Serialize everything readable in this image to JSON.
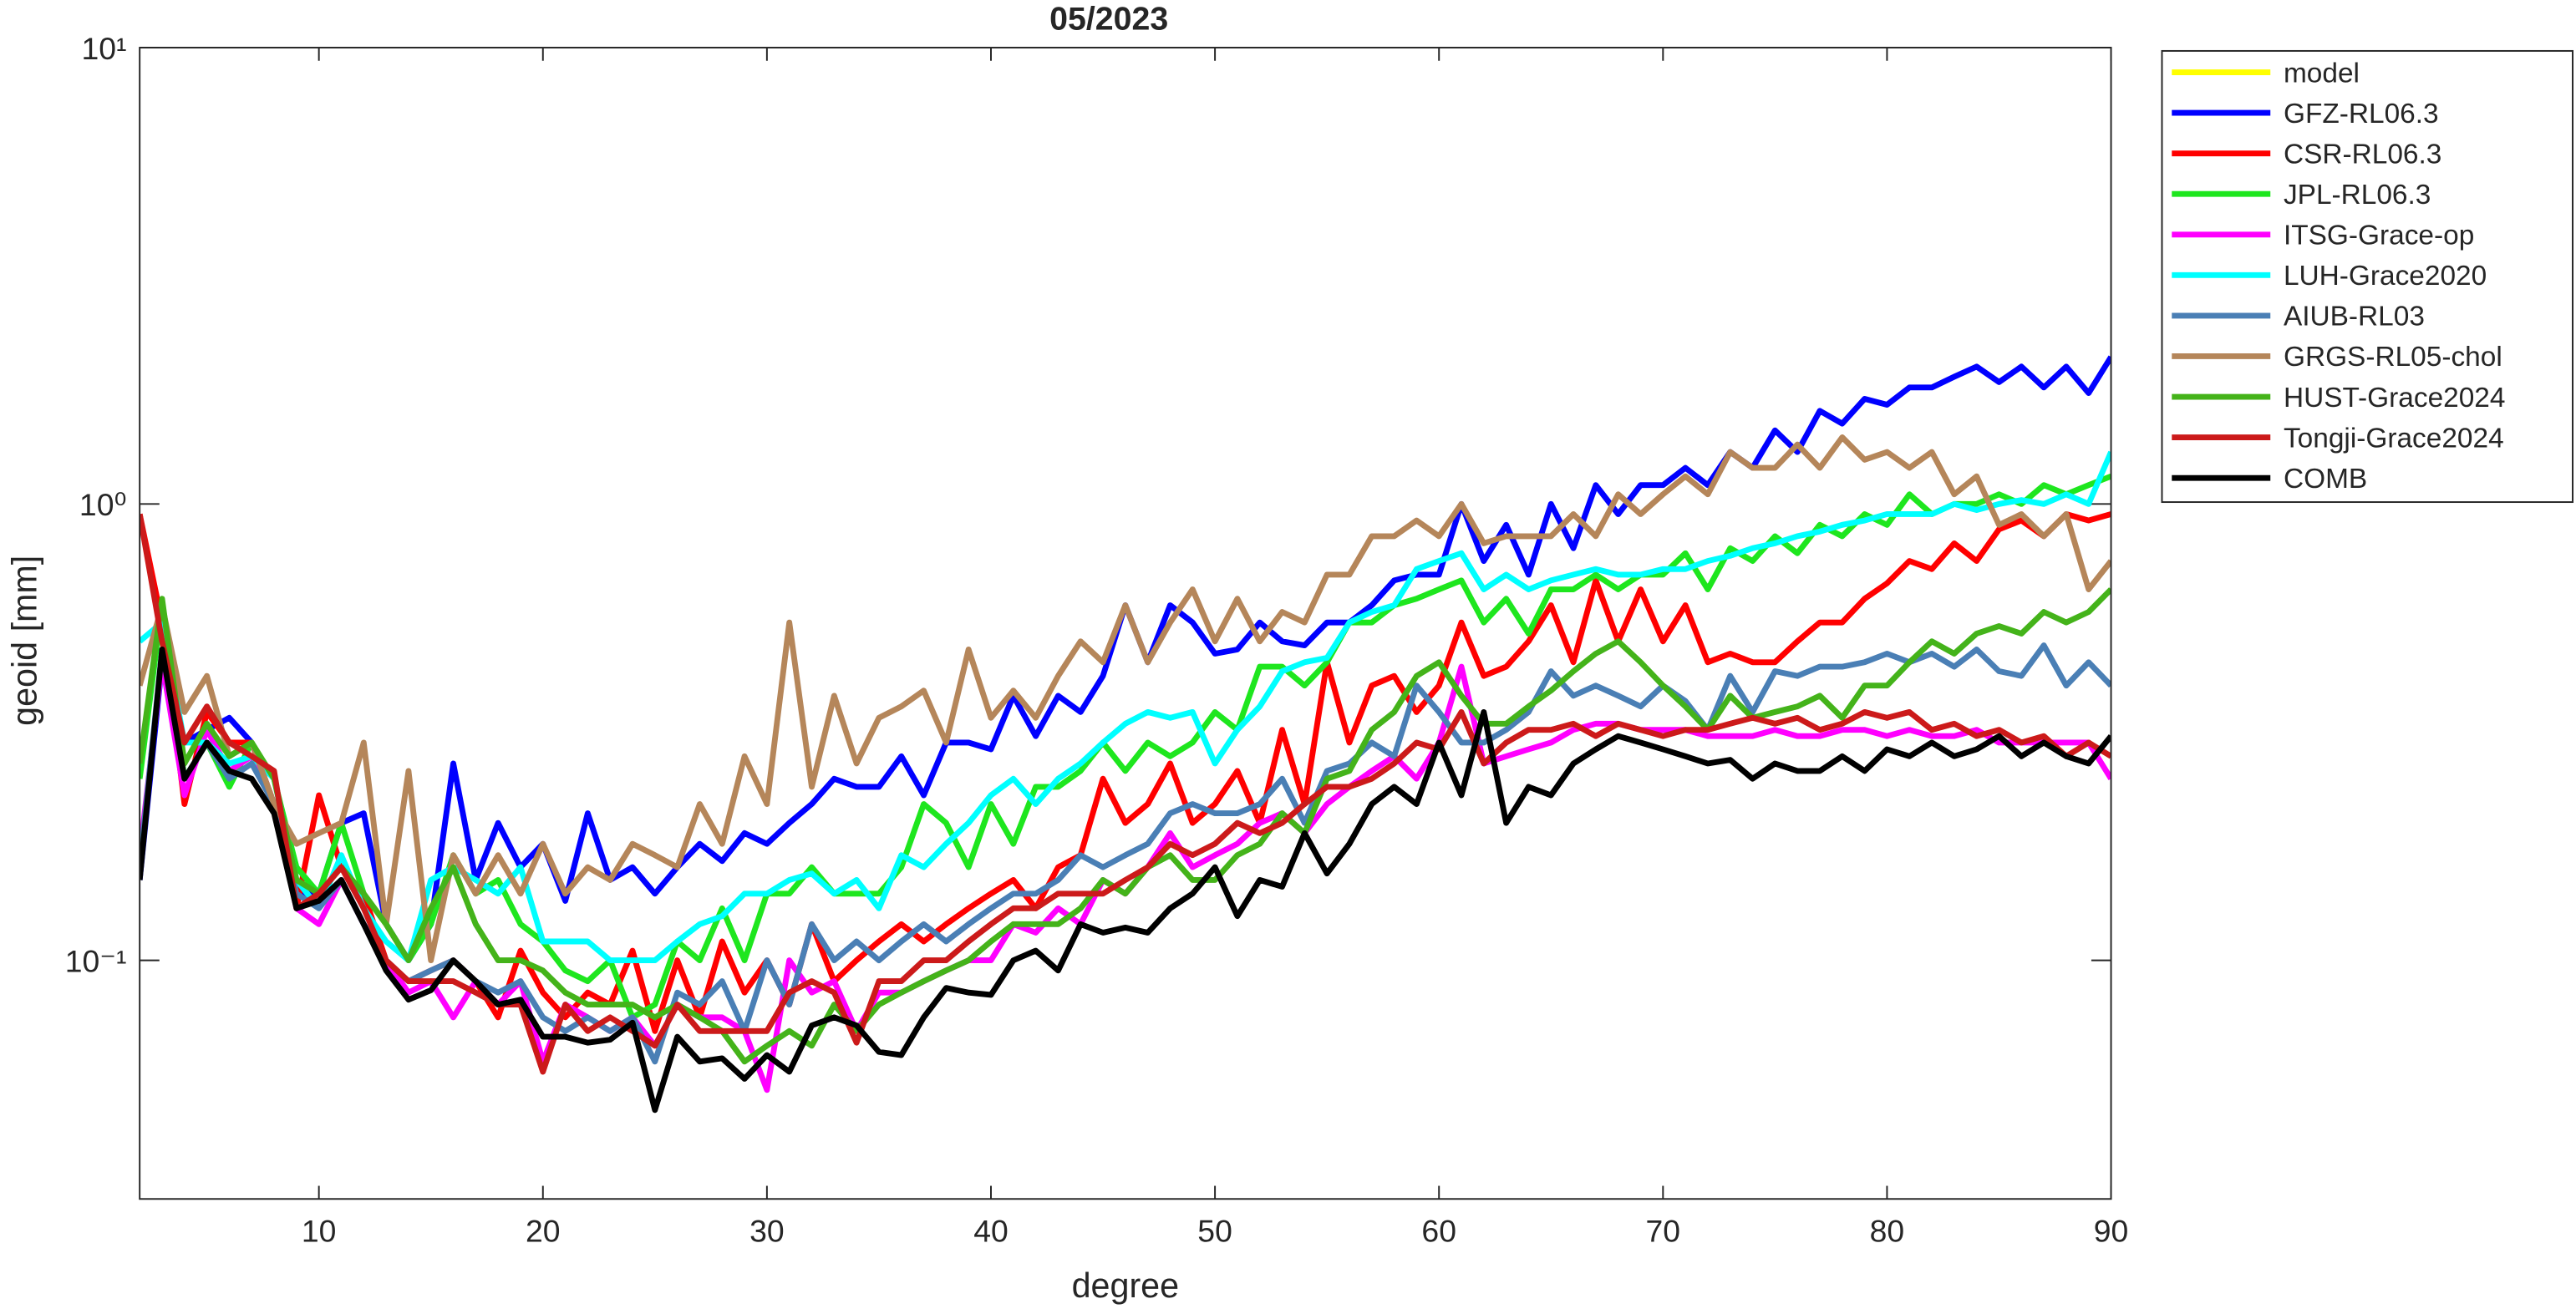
{
  "chart_data": {
    "type": "line",
    "title": "05/2023",
    "xlabel": "degree",
    "ylabel": "geoid [mm]",
    "xlim": [
      2,
      90
    ],
    "ylim": [
      0.03,
      10
    ],
    "log_y": true,
    "xticks": [
      10,
      20,
      30,
      40,
      50,
      60,
      70,
      80,
      90
    ],
    "yticks": [
      {
        "value": 0.1,
        "label": "10⁻¹"
      },
      {
        "value": 1,
        "label": "10⁰"
      },
      {
        "value": 10,
        "label": "10¹"
      }
    ],
    "legend": "northeastoutside",
    "x": [
      2,
      3,
      4,
      5,
      6,
      7,
      8,
      9,
      10,
      11,
      12,
      13,
      14,
      15,
      16,
      17,
      18,
      19,
      20,
      21,
      22,
      23,
      24,
      25,
      26,
      27,
      28,
      29,
      30,
      31,
      32,
      33,
      34,
      35,
      36,
      37,
      38,
      39,
      40,
      41,
      42,
      43,
      44,
      45,
      46,
      47,
      48,
      49,
      50,
      51,
      52,
      53,
      54,
      55,
      56,
      57,
      58,
      59,
      60,
      61,
      62,
      63,
      64,
      65,
      66,
      67,
      68,
      69,
      70,
      71,
      72,
      73,
      74,
      75,
      76,
      77,
      78,
      79,
      80,
      81,
      82,
      83,
      84,
      85,
      86,
      87,
      88,
      89,
      90
    ],
    "series": [
      {
        "name": "model",
        "color": "#ffff00",
        "values": [
          null,
          null,
          null,
          null,
          null,
          null,
          null,
          null,
          null,
          null,
          null,
          null,
          null,
          null,
          null,
          null,
          null,
          null,
          null,
          null,
          null,
          null,
          null,
          null,
          null,
          null,
          null,
          null,
          null,
          null,
          null,
          null,
          null,
          null,
          null,
          null,
          null,
          null,
          null,
          null,
          null,
          null,
          null,
          null,
          null,
          null,
          null,
          null,
          null,
          null,
          null,
          null,
          null,
          null,
          null,
          null,
          null,
          null,
          null,
          null,
          null,
          null,
          null,
          null,
          null,
          null,
          null,
          null,
          null,
          null,
          null,
          null,
          null,
          null,
          null,
          null,
          null,
          null,
          null,
          null,
          null,
          null,
          null,
          null,
          null,
          null,
          null,
          null,
          null
        ]
      },
      {
        "name": "GFZ-RL06.3",
        "color": "#0000ff",
        "values": [
          0.15,
          0.45,
          0.3,
          0.32,
          0.34,
          0.3,
          0.22,
          0.14,
          0.14,
          0.2,
          0.21,
          0.12,
          0.1,
          0.12,
          0.27,
          0.15,
          0.2,
          0.16,
          0.18,
          0.135,
          0.21,
          0.15,
          0.16,
          0.14,
          0.16,
          0.18,
          0.165,
          0.19,
          0.18,
          0.2,
          0.22,
          0.25,
          0.24,
          0.24,
          0.28,
          0.23,
          0.3,
          0.3,
          0.29,
          0.38,
          0.31,
          0.38,
          0.35,
          0.42,
          0.6,
          0.45,
          0.6,
          0.55,
          0.47,
          0.48,
          0.55,
          0.5,
          0.49,
          0.55,
          0.55,
          0.6,
          0.68,
          0.7,
          0.7,
          1.0,
          0.75,
          0.9,
          0.7,
          1.0,
          0.8,
          1.1,
          0.95,
          1.1,
          1.1,
          1.2,
          1.1,
          1.3,
          1.2,
          1.45,
          1.3,
          1.6,
          1.5,
          1.7,
          1.65,
          1.8,
          1.8,
          1.9,
          2.0,
          1.85,
          2.0,
          1.8,
          2.0,
          1.75,
          2.1
        ]
      },
      {
        "name": "CSR-RL06.3",
        "color": "#ff0000",
        "values": [
          0.95,
          0.55,
          0.22,
          0.35,
          0.3,
          0.3,
          0.22,
          0.13,
          0.23,
          0.16,
          0.14,
          0.1,
          0.09,
          0.095,
          0.1,
          0.09,
          0.075,
          0.105,
          0.085,
          0.075,
          0.085,
          0.08,
          0.105,
          0.07,
          0.1,
          0.075,
          0.11,
          0.085,
          0.1,
          0.08,
          0.12,
          0.09,
          0.1,
          0.11,
          0.12,
          0.11,
          0.12,
          0.13,
          0.14,
          0.15,
          0.13,
          0.16,
          0.17,
          0.25,
          0.2,
          0.22,
          0.27,
          0.2,
          0.22,
          0.26,
          0.2,
          0.32,
          0.22,
          0.45,
          0.3,
          0.4,
          0.42,
          0.35,
          0.4,
          0.55,
          0.42,
          0.44,
          0.5,
          0.6,
          0.45,
          0.68,
          0.5,
          0.65,
          0.5,
          0.6,
          0.45,
          0.47,
          0.45,
          0.45,
          0.5,
          0.55,
          0.55,
          0.62,
          0.67,
          0.75,
          0.72,
          0.82,
          0.75,
          0.88,
          0.92,
          0.85,
          0.95,
          0.92,
          0.95
        ]
      },
      {
        "name": "JPL-RL06.3",
        "color": "#1ee61e",
        "values": [
          0.25,
          0.6,
          0.25,
          0.3,
          0.24,
          0.3,
          0.25,
          0.16,
          0.14,
          0.2,
          0.14,
          0.12,
          0.1,
          0.12,
          0.17,
          0.14,
          0.15,
          0.12,
          0.11,
          0.095,
          0.09,
          0.1,
          0.075,
          0.08,
          0.11,
          0.1,
          0.13,
          0.1,
          0.14,
          0.14,
          0.16,
          0.14,
          0.14,
          0.14,
          0.16,
          0.22,
          0.2,
          0.16,
          0.22,
          0.18,
          0.24,
          0.24,
          0.26,
          0.3,
          0.26,
          0.3,
          0.28,
          0.3,
          0.35,
          0.32,
          0.44,
          0.44,
          0.4,
          0.45,
          0.55,
          0.55,
          0.6,
          0.62,
          0.65,
          0.68,
          0.55,
          0.62,
          0.52,
          0.65,
          0.65,
          0.7,
          0.65,
          0.7,
          0.7,
          0.78,
          0.65,
          0.8,
          0.75,
          0.85,
          0.78,
          0.9,
          0.85,
          0.95,
          0.9,
          1.05,
          0.95,
          1.0,
          1.0,
          1.05,
          1.0,
          1.1,
          1.05,
          1.1,
          1.15
        ]
      },
      {
        "name": "ITSG-Grace-op",
        "color": "#ff00ff",
        "values": [
          0.17,
          0.45,
          0.23,
          0.32,
          0.26,
          0.28,
          0.22,
          0.13,
          0.12,
          0.15,
          0.12,
          0.1,
          0.085,
          0.09,
          0.075,
          0.09,
          0.08,
          0.09,
          0.06,
          0.08,
          0.075,
          0.07,
          0.075,
          0.065,
          0.08,
          0.075,
          0.075,
          0.07,
          0.052,
          0.1,
          0.085,
          0.09,
          0.07,
          0.085,
          0.085,
          0.09,
          0.095,
          0.1,
          0.1,
          0.12,
          0.115,
          0.13,
          0.12,
          0.15,
          0.14,
          0.16,
          0.19,
          0.16,
          0.17,
          0.18,
          0.2,
          0.21,
          0.19,
          0.22,
          0.24,
          0.26,
          0.28,
          0.25,
          0.3,
          0.44,
          0.27,
          0.28,
          0.29,
          0.3,
          0.32,
          0.33,
          0.33,
          0.32,
          0.32,
          0.32,
          0.31,
          0.31,
          0.31,
          0.32,
          0.31,
          0.31,
          0.32,
          0.32,
          0.31,
          0.32,
          0.31,
          0.31,
          0.32,
          0.3,
          0.3,
          0.3,
          0.3,
          0.3,
          0.25
        ]
      },
      {
        "name": "LUH-Grace2020",
        "color": "#00ffff",
        "values": [
          0.5,
          0.55,
          0.3,
          0.3,
          0.27,
          0.28,
          0.25,
          0.15,
          0.13,
          0.17,
          0.13,
          0.11,
          0.1,
          0.15,
          0.16,
          0.15,
          0.14,
          0.16,
          0.11,
          0.11,
          0.11,
          0.1,
          0.1,
          0.1,
          0.11,
          0.12,
          0.125,
          0.14,
          0.14,
          0.15,
          0.155,
          0.14,
          0.15,
          0.13,
          0.17,
          0.16,
          0.18,
          0.2,
          0.23,
          0.25,
          0.22,
          0.25,
          0.27,
          0.3,
          0.33,
          0.35,
          0.34,
          0.35,
          0.27,
          0.32,
          0.36,
          0.43,
          0.45,
          0.46,
          0.55,
          0.58,
          0.6,
          0.72,
          0.75,
          0.78,
          0.65,
          0.7,
          0.65,
          0.68,
          0.7,
          0.72,
          0.7,
          0.7,
          0.72,
          0.72,
          0.75,
          0.77,
          0.8,
          0.82,
          0.85,
          0.87,
          0.9,
          0.92,
          0.95,
          0.95,
          0.95,
          1.0,
          0.97,
          1.0,
          1.02,
          1.0,
          1.05,
          1.0,
          1.3
        ]
      },
      {
        "name": "AIUB-RL03",
        "color": "#4a7fb5",
        "values": [
          0.16,
          0.48,
          0.25,
          0.3,
          0.25,
          0.27,
          0.22,
          0.14,
          0.13,
          0.15,
          0.12,
          0.1,
          0.09,
          0.095,
          0.1,
          0.09,
          0.085,
          0.09,
          0.075,
          0.07,
          0.075,
          0.07,
          0.075,
          0.06,
          0.085,
          0.08,
          0.09,
          0.07,
          0.1,
          0.08,
          0.12,
          0.1,
          0.11,
          0.1,
          0.11,
          0.12,
          0.11,
          0.12,
          0.13,
          0.14,
          0.14,
          0.15,
          0.17,
          0.16,
          0.17,
          0.18,
          0.21,
          0.22,
          0.21,
          0.21,
          0.22,
          0.25,
          0.2,
          0.26,
          0.27,
          0.3,
          0.28,
          0.4,
          0.35,
          0.3,
          0.3,
          0.32,
          0.35,
          0.43,
          0.38,
          0.4,
          0.38,
          0.36,
          0.4,
          0.37,
          0.32,
          0.42,
          0.35,
          0.43,
          0.42,
          0.44,
          0.44,
          0.45,
          0.47,
          0.45,
          0.47,
          0.44,
          0.48,
          0.43,
          0.42,
          0.49,
          0.4,
          0.45,
          0.4
        ]
      },
      {
        "name": "GRGS-RL05-chol",
        "color": "#b5865a",
        "values": [
          0.4,
          0.6,
          0.35,
          0.42,
          0.28,
          0.3,
          0.22,
          0.18,
          0.19,
          0.2,
          0.3,
          0.12,
          0.26,
          0.1,
          0.17,
          0.14,
          0.17,
          0.14,
          0.18,
          0.14,
          0.16,
          0.15,
          0.18,
          0.17,
          0.16,
          0.22,
          0.18,
          0.28,
          0.22,
          0.55,
          0.24,
          0.38,
          0.27,
          0.34,
          0.36,
          0.39,
          0.3,
          0.48,
          0.34,
          0.39,
          0.34,
          0.42,
          0.5,
          0.45,
          0.6,
          0.45,
          0.55,
          0.65,
          0.5,
          0.62,
          0.5,
          0.58,
          0.55,
          0.7,
          0.7,
          0.85,
          0.85,
          0.92,
          0.85,
          1.0,
          0.82,
          0.85,
          0.85,
          0.85,
          0.95,
          0.85,
          1.05,
          0.95,
          1.05,
          1.15,
          1.05,
          1.3,
          1.2,
          1.2,
          1.35,
          1.2,
          1.4,
          1.25,
          1.3,
          1.2,
          1.3,
          1.05,
          1.15,
          0.9,
          0.95,
          0.85,
          0.95,
          0.65,
          0.75
        ]
      },
      {
        "name": "HUST-Grace2024",
        "color": "#44b31a",
        "values": [
          0.27,
          0.62,
          0.27,
          0.33,
          0.28,
          0.3,
          0.25,
          0.15,
          0.14,
          0.16,
          0.14,
          0.12,
          0.1,
          0.13,
          0.16,
          0.12,
          0.1,
          0.1,
          0.095,
          0.085,
          0.08,
          0.08,
          0.08,
          0.075,
          0.08,
          0.075,
          0.07,
          0.06,
          0.065,
          0.07,
          0.065,
          0.08,
          0.07,
          0.08,
          0.085,
          0.09,
          0.095,
          0.1,
          0.11,
          0.12,
          0.12,
          0.12,
          0.13,
          0.15,
          0.14,
          0.16,
          0.17,
          0.15,
          0.15,
          0.17,
          0.18,
          0.21,
          0.19,
          0.25,
          0.26,
          0.32,
          0.35,
          0.42,
          0.45,
          0.38,
          0.33,
          0.33,
          0.36,
          0.39,
          0.43,
          0.47,
          0.5,
          0.45,
          0.4,
          0.36,
          0.32,
          0.38,
          0.34,
          0.35,
          0.36,
          0.38,
          0.34,
          0.4,
          0.4,
          0.45,
          0.5,
          0.47,
          0.52,
          0.54,
          0.52,
          0.58,
          0.55,
          0.58,
          0.65
        ]
      },
      {
        "name": "Tongji-Grace2024",
        "color": "#cc1a1a",
        "values": [
          0.95,
          0.5,
          0.3,
          0.36,
          0.3,
          0.28,
          0.26,
          0.13,
          0.14,
          0.16,
          0.13,
          0.1,
          0.09,
          0.09,
          0.09,
          0.085,
          0.08,
          0.08,
          0.057,
          0.08,
          0.07,
          0.075,
          0.07,
          0.065,
          0.08,
          0.07,
          0.07,
          0.07,
          0.07,
          0.085,
          0.09,
          0.085,
          0.066,
          0.09,
          0.09,
          0.1,
          0.1,
          0.11,
          0.12,
          0.13,
          0.13,
          0.14,
          0.14,
          0.14,
          0.15,
          0.16,
          0.18,
          0.17,
          0.18,
          0.2,
          0.19,
          0.2,
          0.22,
          0.24,
          0.24,
          0.25,
          0.27,
          0.3,
          0.29,
          0.35,
          0.27,
          0.3,
          0.32,
          0.32,
          0.33,
          0.31,
          0.33,
          0.32,
          0.31,
          0.32,
          0.32,
          0.33,
          0.34,
          0.33,
          0.34,
          0.32,
          0.33,
          0.35,
          0.34,
          0.35,
          0.32,
          0.33,
          0.31,
          0.32,
          0.3,
          0.31,
          0.28,
          0.3,
          0.28
        ]
      },
      {
        "name": "COMB",
        "color": "#000000",
        "values": [
          0.15,
          0.48,
          0.25,
          0.3,
          0.26,
          0.25,
          0.21,
          0.13,
          0.135,
          0.15,
          0.12,
          0.095,
          0.082,
          0.086,
          0.1,
          0.09,
          0.08,
          0.082,
          0.068,
          0.068,
          0.066,
          0.067,
          0.073,
          0.047,
          0.068,
          0.06,
          0.061,
          0.055,
          0.062,
          0.057,
          0.072,
          0.075,
          0.072,
          0.063,
          0.062,
          0.075,
          0.087,
          0.085,
          0.084,
          0.1,
          0.105,
          0.095,
          0.12,
          0.115,
          0.118,
          0.115,
          0.13,
          0.14,
          0.16,
          0.125,
          0.15,
          0.145,
          0.19,
          0.155,
          0.18,
          0.22,
          0.24,
          0.22,
          0.3,
          0.23,
          0.35,
          0.2,
          0.24,
          0.23,
          0.27,
          0.29,
          0.31,
          0.3,
          0.29,
          0.28,
          0.27,
          0.275,
          0.25,
          0.27,
          0.26,
          0.26,
          0.28,
          0.26,
          0.29,
          0.28,
          0.3,
          0.28,
          0.29,
          0.31,
          0.28,
          0.3,
          0.28,
          0.27,
          0.31
        ]
      }
    ]
  }
}
